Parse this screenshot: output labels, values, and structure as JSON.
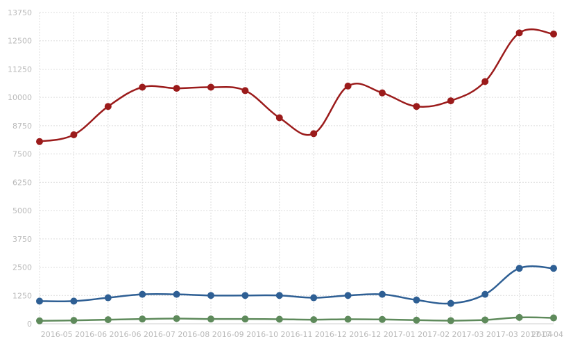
{
  "chart_data": {
    "type": "line",
    "title": "",
    "xlabel": "",
    "ylabel": "",
    "ylim": [
      0,
      13750
    ],
    "yticks": [
      "0",
      "1250",
      "2500",
      "3750",
      "5000",
      "6250",
      "7500",
      "8750",
      "10000",
      "11250",
      "12500",
      "13750"
    ],
    "xtick_labels": [
      "2016-05",
      "2016-06",
      "2016-06",
      "2016-07",
      "2016-08",
      "2016-09",
      "2016-10",
      "2016-11",
      "2016-12",
      "2016-12",
      "2017-01",
      "2017-02",
      "2017-03",
      "2017-03",
      "2017-04",
      "2017-04"
    ],
    "grid": true,
    "legend": "none",
    "series": [
      {
        "color": "#9b1b1b",
        "values": [
          8050,
          8350,
          9600,
          10450,
          10400,
          10450,
          10300,
          9100,
          8400,
          10500,
          10200,
          9600,
          9850,
          10700,
          12850,
          12800
        ]
      },
      {
        "color": "#2e5f94",
        "values": [
          1000,
          1000,
          1150,
          1300,
          1300,
          1250,
          1250,
          1250,
          1150,
          1250,
          1300,
          1050,
          900,
          1300,
          2450,
          2450
        ]
      },
      {
        "color": "#5e8a5b",
        "values": [
          130,
          150,
          180,
          210,
          230,
          210,
          210,
          200,
          180,
          200,
          190,
          160,
          140,
          170,
          280,
          260
        ]
      }
    ]
  }
}
